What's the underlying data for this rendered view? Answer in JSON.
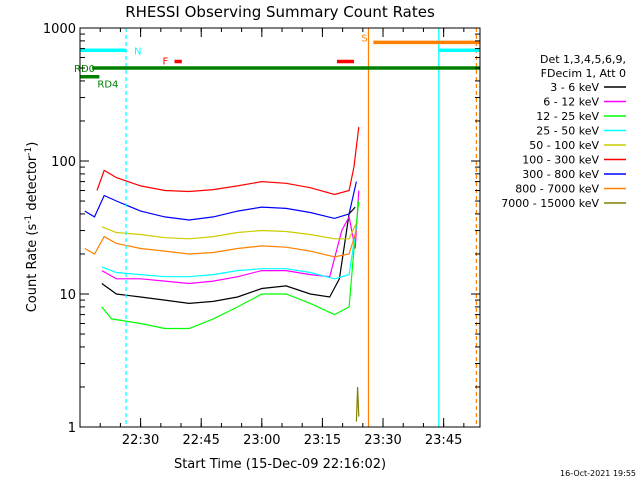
{
  "chart_data": {
    "type": "line",
    "title": "RHESSI Observing Summary Count Rates",
    "xlabel": "Start Time (15-Dec-09 22:16:02)",
    "ylabel": "Count Rate (s",
    "ylabel_sup": "-1",
    "ylabel_mid": " detector",
    "ylabel_end": ")",
    "y_scale": "log",
    "ylim": [
      1,
      1000
    ],
    "xlim": [
      22.25,
      23.9
    ],
    "y_ticks": [
      {
        "value": 1,
        "label": "1"
      },
      {
        "value": 10,
        "label": "10"
      },
      {
        "value": 100,
        "label": "100"
      },
      {
        "value": 1000,
        "label": "1000"
      }
    ],
    "x_ticks": [
      {
        "value": 22.5,
        "label": "22:30"
      },
      {
        "value": 22.75,
        "label": "22:45"
      },
      {
        "value": 23.0,
        "label": "23:00"
      },
      {
        "value": 23.25,
        "label": "23:15"
      },
      {
        "value": 23.5,
        "label": "23:30"
      },
      {
        "value": 23.75,
        "label": "23:45"
      }
    ],
    "legend_header": [
      "Det 1,3,4,5,6,9,",
      "FDecim 1, Att 0"
    ],
    "series": [
      {
        "name": "3 - 6 keV",
        "color": "#000000",
        "points": [
          [
            22.34,
            12
          ],
          [
            22.4,
            10
          ],
          [
            22.5,
            9.5
          ],
          [
            22.6,
            9
          ],
          [
            22.7,
            8.5
          ],
          [
            22.8,
            8.8
          ],
          [
            22.9,
            9.5
          ],
          [
            23.0,
            11
          ],
          [
            23.1,
            11.5
          ],
          [
            23.2,
            10
          ],
          [
            23.28,
            9.5
          ],
          [
            23.32,
            13
          ],
          [
            23.36,
            40
          ],
          [
            23.385,
            45
          ]
        ]
      },
      {
        "name": "6 - 12 keV",
        "color": "#ff00ff",
        "points": [
          [
            22.34,
            15
          ],
          [
            22.4,
            13
          ],
          [
            22.5,
            13
          ],
          [
            22.6,
            12.5
          ],
          [
            22.7,
            12
          ],
          [
            22.8,
            12.5
          ],
          [
            22.9,
            13.5
          ],
          [
            23.0,
            15
          ],
          [
            23.1,
            15
          ],
          [
            23.2,
            14
          ],
          [
            23.28,
            13.5
          ],
          [
            23.33,
            30
          ],
          [
            23.36,
            38
          ],
          [
            23.385,
            22
          ],
          [
            23.4,
            60
          ]
        ]
      },
      {
        "name": "12 - 25 keV",
        "color": "#00ff00",
        "points": [
          [
            22.34,
            8
          ],
          [
            22.38,
            6.5
          ],
          [
            22.5,
            6
          ],
          [
            22.6,
            5.5
          ],
          [
            22.7,
            5.5
          ],
          [
            22.8,
            6.5
          ],
          [
            22.9,
            8
          ],
          [
            23.0,
            10
          ],
          [
            23.1,
            10
          ],
          [
            23.2,
            8.5
          ],
          [
            23.3,
            7
          ],
          [
            23.36,
            8
          ],
          [
            23.385,
            28
          ],
          [
            23.4,
            50
          ]
        ]
      },
      {
        "name": "25 - 50 keV",
        "color": "#00ffff",
        "points": [
          [
            22.34,
            16
          ],
          [
            22.4,
            14.5
          ],
          [
            22.5,
            14
          ],
          [
            22.6,
            13.5
          ],
          [
            22.7,
            13.5
          ],
          [
            22.8,
            14
          ],
          [
            22.9,
            15
          ],
          [
            23.0,
            15.5
          ],
          [
            23.1,
            15.5
          ],
          [
            23.2,
            14.5
          ],
          [
            23.3,
            13
          ],
          [
            23.36,
            14
          ],
          [
            23.39,
            32
          ]
        ]
      },
      {
        "name": "50 - 100 keV",
        "color": "#cccc00",
        "points": [
          [
            22.34,
            32
          ],
          [
            22.4,
            29
          ],
          [
            22.5,
            28
          ],
          [
            22.6,
            26.5
          ],
          [
            22.7,
            26
          ],
          [
            22.8,
            27
          ],
          [
            22.9,
            29
          ],
          [
            23.0,
            30
          ],
          [
            23.1,
            29.5
          ],
          [
            23.2,
            28
          ],
          [
            23.3,
            26
          ],
          [
            23.36,
            26
          ],
          [
            23.39,
            34
          ]
        ]
      },
      {
        "name": "100 - 300 keV",
        "color": "#ff0000",
        "points": [
          [
            22.32,
            60
          ],
          [
            22.35,
            85
          ],
          [
            22.4,
            75
          ],
          [
            22.5,
            65
          ],
          [
            22.6,
            60
          ],
          [
            22.7,
            59
          ],
          [
            22.8,
            61
          ],
          [
            22.9,
            65
          ],
          [
            23.0,
            70
          ],
          [
            23.1,
            68
          ],
          [
            23.2,
            63
          ],
          [
            23.3,
            56
          ],
          [
            23.36,
            60
          ],
          [
            23.38,
            90
          ],
          [
            23.4,
            180
          ]
        ]
      },
      {
        "name": "300 - 800 keV",
        "color": "#0000ff",
        "points": [
          [
            22.27,
            42
          ],
          [
            22.31,
            38
          ],
          [
            22.35,
            55
          ],
          [
            22.4,
            50
          ],
          [
            22.5,
            42
          ],
          [
            22.6,
            38
          ],
          [
            22.7,
            36
          ],
          [
            22.8,
            38
          ],
          [
            22.9,
            42
          ],
          [
            23.0,
            45
          ],
          [
            23.1,
            44
          ],
          [
            23.2,
            41
          ],
          [
            23.3,
            37
          ],
          [
            23.36,
            40
          ],
          [
            23.39,
            70
          ]
        ]
      },
      {
        "name": "800 - 7000 keV",
        "color": "#ff8000",
        "points": [
          [
            22.27,
            22
          ],
          [
            22.31,
            20
          ],
          [
            22.35,
            27
          ],
          [
            22.4,
            24
          ],
          [
            22.5,
            22
          ],
          [
            22.6,
            21
          ],
          [
            22.7,
            20
          ],
          [
            22.8,
            20.5
          ],
          [
            22.9,
            22
          ],
          [
            23.0,
            23
          ],
          [
            23.1,
            22.5
          ],
          [
            23.2,
            21
          ],
          [
            23.3,
            19
          ],
          [
            23.36,
            20
          ],
          [
            23.39,
            30
          ]
        ]
      },
      {
        "name": "7000 - 15000 keV",
        "color": "#808000",
        "points": [
          [
            23.39,
            1.1
          ],
          [
            23.395,
            2
          ],
          [
            23.4,
            1.2
          ]
        ]
      }
    ],
    "segments": [
      {
        "label": "N",
        "color": "#00ffff",
        "y": 680,
        "x1": 22.25,
        "x2": 22.44
      },
      {
        "label": "",
        "color": "#00ffff",
        "y": 680,
        "x1": 23.73,
        "x2": 23.9
      },
      {
        "label": "S",
        "color": "#ff8000",
        "y": 780,
        "x1": 23.46,
        "x2": 23.9
      },
      {
        "label": "F",
        "color": "#ff0000",
        "y": 560,
        "x1": 22.64,
        "x2": 22.67
      },
      {
        "label": "",
        "color": "#ff0000",
        "y": 560,
        "x1": 23.31,
        "x2": 23.38
      },
      {
        "label": "RD0",
        "color": "#008000",
        "y": 500,
        "x1": 22.3,
        "x2": 23.9
      },
      {
        "label": "RD4",
        "color": "#008000",
        "y": 430,
        "x1": 22.25,
        "x2": 22.33
      }
    ],
    "vlines": [
      {
        "x": 22.44,
        "color": "#00ffff",
        "style": "dashed"
      },
      {
        "x": 23.44,
        "color": "#ff8000",
        "style": "solid"
      },
      {
        "x": 23.73,
        "color": "#00ffff",
        "style": "solid"
      },
      {
        "x": 23.885,
        "color": "#ff8000",
        "style": "dashed"
      }
    ]
  },
  "footer": {
    "timestamp": "16-Oct-2021 19:55"
  }
}
